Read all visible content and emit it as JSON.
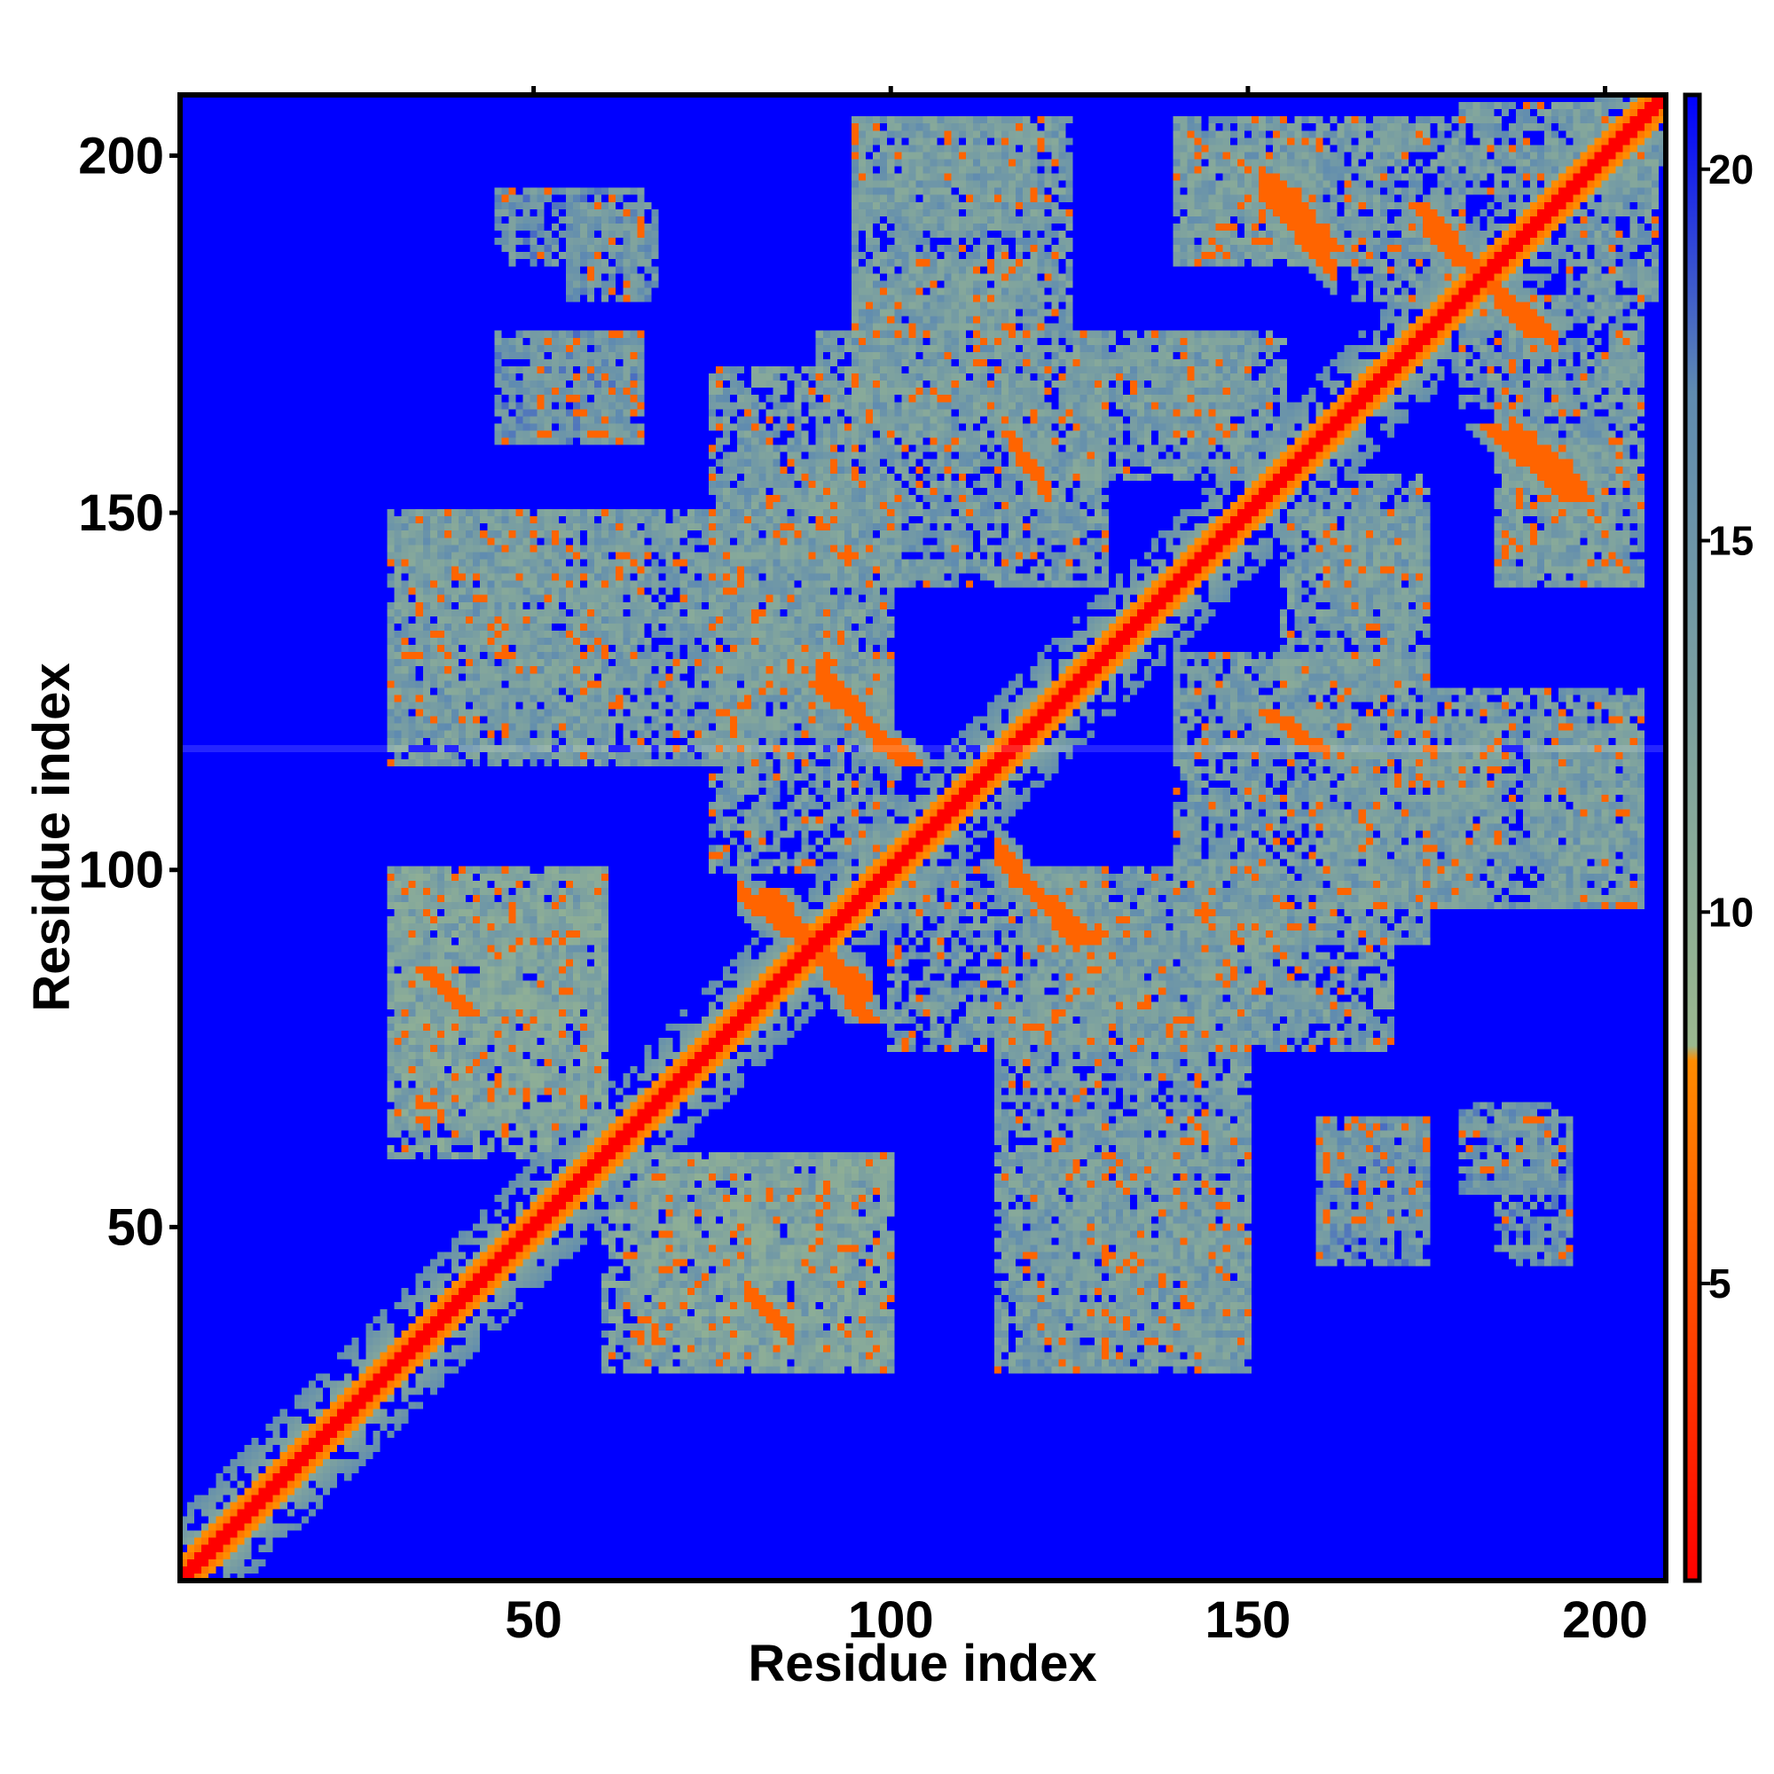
{
  "chart_data": {
    "type": "heatmap",
    "title": "",
    "xlabel": "Residue index",
    "ylabel": "Residue index",
    "xlim": [
      1,
      208
    ],
    "ylim": [
      1,
      208
    ],
    "x_ticks": [
      50,
      100,
      150,
      200
    ],
    "y_ticks": [
      50,
      100,
      150,
      200
    ],
    "colorbar": {
      "ticks": [
        5,
        10,
        15,
        20
      ],
      "range": [
        1,
        21
      ],
      "colors": [
        "#ff0000",
        "#ff8c00",
        "#9bb88f",
        "#5f8bb0",
        "#0000ff"
      ],
      "stops": [
        0,
        0.35,
        0.36,
        0.8,
        1
      ]
    },
    "background_value": 21,
    "diagonal": {
      "from": 1,
      "to": 208,
      "value": 1
    },
    "gap_row": 117,
    "features": [
      {
        "kind": "antidiagonal",
        "x0": 83,
        "y0": 97,
        "x1": 97,
        "y1": 79,
        "value": 6
      },
      {
        "kind": "antidiagonal",
        "x0": 90,
        "y0": 126,
        "x1": 103,
        "y1": 115,
        "value": 6
      },
      {
        "kind": "antidiagonal",
        "x0": 116,
        "y0": 101,
        "x1": 128,
        "y1": 90,
        "value": 6
      },
      {
        "kind": "antidiagonal",
        "x0": 153,
        "y0": 197,
        "x1": 162,
        "y1": 187,
        "value": 6
      },
      {
        "kind": "antidiagonal",
        "x0": 174,
        "y0": 193,
        "x1": 190,
        "y1": 175,
        "value": 6
      },
      {
        "kind": "antidiagonal",
        "x0": 184,
        "y0": 162,
        "x1": 195,
        "y1": 152,
        "value": 6
      },
      {
        "kind": "antidiagonal",
        "x0": 35,
        "y0": 86,
        "x1": 41,
        "y1": 80,
        "value": 6
      },
      {
        "kind": "antidiagonal",
        "x0": 153,
        "y0": 122,
        "x1": 160,
        "y1": 117,
        "value": 6
      },
      {
        "kind": "region",
        "x0": 30,
        "y0": 65,
        "x1": 60,
        "y1": 100,
        "value": 13
      },
      {
        "kind": "region",
        "x0": 30,
        "y0": 115,
        "x1": 80,
        "y1": 150,
        "value": 14
      },
      {
        "kind": "region",
        "x0": 60,
        "y0": 30,
        "x1": 100,
        "y1": 60,
        "value": 13
      },
      {
        "kind": "region",
        "x0": 45,
        "y0": 185,
        "x1": 65,
        "y1": 195,
        "value": 15
      },
      {
        "kind": "region",
        "x0": 45,
        "y0": 160,
        "x1": 65,
        "y1": 175,
        "value": 15
      },
      {
        "kind": "region",
        "x0": 95,
        "y0": 175,
        "x1": 125,
        "y1": 205,
        "value": 14
      },
      {
        "kind": "region",
        "x0": 90,
        "y0": 140,
        "x1": 130,
        "y1": 175,
        "value": 14
      },
      {
        "kind": "region",
        "x0": 120,
        "y0": 30,
        "x1": 150,
        "y1": 65,
        "value": 14
      },
      {
        "kind": "region",
        "x0": 125,
        "y0": 75,
        "x1": 170,
        "y1": 95,
        "value": 14
      },
      {
        "kind": "region",
        "x0": 135,
        "y0": 160,
        "x1": 155,
        "y1": 175,
        "value": 14
      },
      {
        "kind": "region",
        "x0": 155,
        "y0": 125,
        "x1": 175,
        "y1": 150,
        "value": 14
      },
      {
        "kind": "region",
        "x0": 160,
        "y0": 95,
        "x1": 185,
        "y1": 120,
        "value": 14
      },
      {
        "kind": "region",
        "x0": 190,
        "y0": 95,
        "x1": 205,
        "y1": 120,
        "value": 14
      },
      {
        "kind": "region",
        "x0": 160,
        "y0": 50,
        "x1": 175,
        "y1": 65,
        "value": 15
      },
      {
        "kind": "region",
        "x0": 180,
        "y0": 55,
        "x1": 193,
        "y1": 67,
        "value": 15
      },
      {
        "kind": "region",
        "x0": 185,
        "y0": 140,
        "x1": 205,
        "y1": 165,
        "value": 14
      },
      {
        "kind": "region",
        "x0": 140,
        "y0": 185,
        "x1": 160,
        "y1": 205,
        "value": 14
      },
      {
        "kind": "region",
        "x0": 165,
        "y0": 180,
        "x1": 180,
        "y1": 205,
        "value": 14
      },
      {
        "kind": "region",
        "x0": 195,
        "y0": 180,
        "x1": 207,
        "y1": 205,
        "value": 14
      },
      {
        "kind": "region",
        "x0": 100,
        "y0": 75,
        "x1": 130,
        "y1": 100,
        "value": 14
      },
      {
        "kind": "region",
        "x0": 80,
        "y0": 120,
        "x1": 100,
        "y1": 155,
        "value": 14
      }
    ]
  }
}
